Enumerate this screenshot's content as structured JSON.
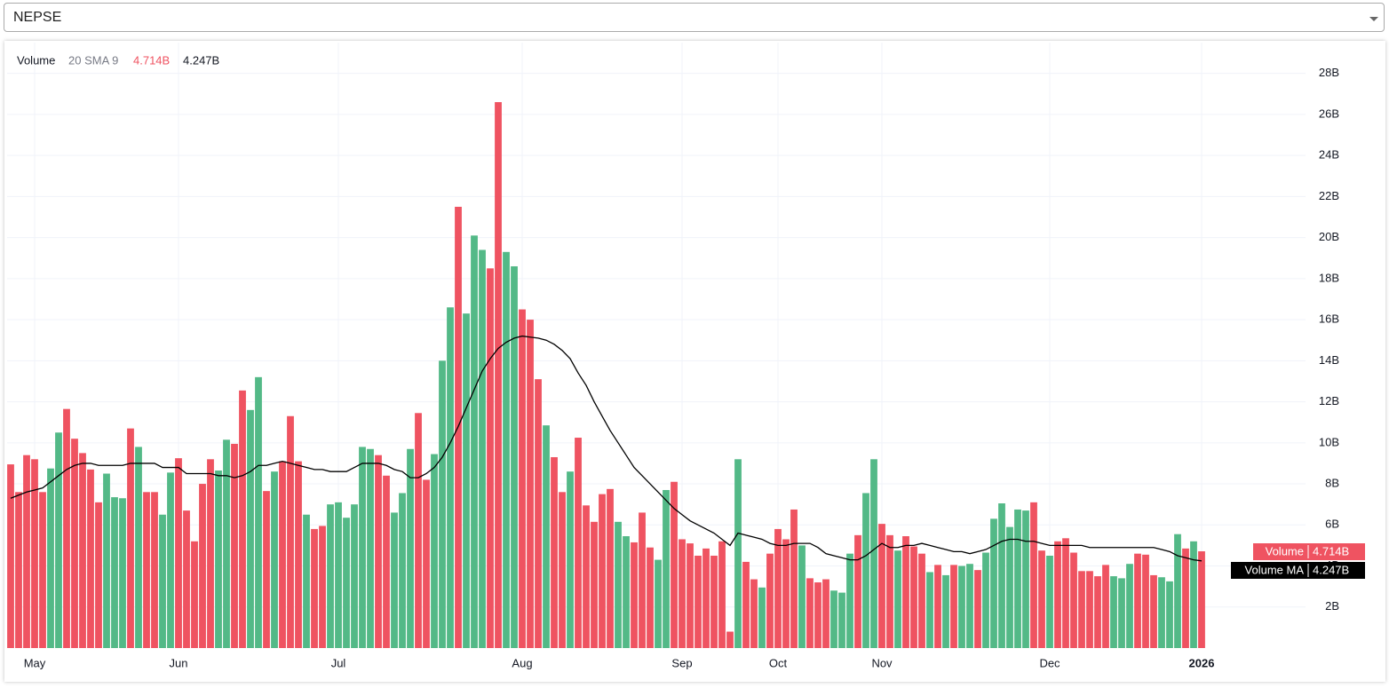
{
  "selector": {
    "value": "NEPSE"
  },
  "chart_data": {
    "type": "bar",
    "indicator_label": "Volume",
    "indicator_params": "20 SMA 9",
    "categories": [
      null,
      null,
      null,
      "May",
      null,
      null,
      null,
      null,
      null,
      null,
      null,
      null,
      null,
      null,
      null,
      null,
      null,
      null,
      null,
      null,
      null,
      "Jun",
      null,
      null,
      null,
      null,
      null,
      null,
      null,
      null,
      null,
      null,
      null,
      null,
      null,
      null,
      null,
      null,
      null,
      null,
      null,
      "Jul",
      null,
      null,
      null,
      null,
      null,
      null,
      null,
      null,
      null,
      null,
      null,
      null,
      null,
      null,
      null,
      null,
      null,
      null,
      null,
      null,
      null,
      null,
      "Aug",
      null,
      null,
      null,
      null,
      null,
      null,
      null,
      null,
      null,
      null,
      null,
      null,
      null,
      null,
      null,
      null,
      null,
      null,
      null,
      "Sep",
      null,
      null,
      null,
      null,
      null,
      null,
      null,
      null,
      null,
      null,
      null,
      "Oct",
      null,
      null,
      null,
      null,
      null,
      null,
      null,
      null,
      null,
      null,
      null,
      null,
      "Nov",
      null,
      null,
      null,
      null,
      null,
      null,
      null,
      null,
      null,
      null,
      null,
      null,
      null,
      null,
      null,
      null,
      null,
      null,
      null,
      null,
      "Dec",
      null,
      null,
      null,
      null,
      null,
      null,
      null,
      null,
      null,
      null,
      null,
      null,
      null,
      null,
      null,
      null,
      null,
      null,
      "2026"
    ],
    "ylim": [
      0,
      29.5
    ],
    "yticks": [
      {
        "value": 2,
        "label": "2B"
      },
      {
        "value": 4,
        "label": "4B"
      },
      {
        "value": 6,
        "label": "6B"
      },
      {
        "value": 8,
        "label": "8B"
      },
      {
        "value": 10,
        "label": "10B"
      },
      {
        "value": 12,
        "label": "12B"
      },
      {
        "value": 14,
        "label": "14B"
      },
      {
        "value": 16,
        "label": "16B"
      },
      {
        "value": 18,
        "label": "18B"
      },
      {
        "value": 20,
        "label": "20B"
      },
      {
        "value": 22,
        "label": "22B"
      },
      {
        "value": 24,
        "label": "24B"
      },
      {
        "value": 26,
        "label": "26B"
      },
      {
        "value": 28,
        "label": "28B"
      }
    ],
    "grid": true,
    "series": [
      {
        "name": "Volume",
        "color": "#ef5350",
        "last_value_label": "4.714B",
        "values": [
          8.95,
          7.6,
          9.4,
          9.2,
          7.6,
          8.75,
          10.5,
          11.65,
          10.2,
          9.5,
          8.7,
          7.1,
          8.5,
          7.35,
          7.3,
          10.7,
          9.8,
          7.6,
          7.6,
          6.5,
          8.55,
          9.25,
          6.7,
          5.2,
          8.0,
          9.2,
          8.65,
          10.15,
          9.95,
          12.55,
          11.6,
          13.2,
          7.65,
          8.6,
          9.1,
          11.3,
          9.1,
          6.5,
          5.8,
          5.95,
          7.0,
          7.1,
          6.35,
          7.0,
          9.8,
          9.7,
          9.4,
          8.4,
          6.6,
          7.55,
          9.7,
          11.45,
          8.2,
          9.45,
          14.0,
          16.6,
          21.5,
          16.3,
          20.1,
          19.4,
          18.5,
          26.6,
          19.3,
          18.6,
          16.5,
          16.0,
          13.1,
          10.85,
          9.3,
          7.6,
          8.6,
          10.25,
          6.95,
          6.15,
          7.5,
          7.75,
          6.15,
          5.45,
          5.15,
          6.6,
          4.9,
          4.3,
          7.7,
          8.1,
          5.3,
          5.1,
          4.5,
          4.85,
          4.5,
          5.2,
          0.8,
          9.2,
          4.2,
          3.35,
          2.95,
          4.6,
          5.8,
          5.3,
          6.75,
          5.0,
          3.4,
          3.2,
          3.35,
          2.8,
          2.7,
          4.6,
          5.5,
          7.55,
          9.2,
          6.05,
          5.5,
          4.75,
          5.45,
          4.95,
          4.6,
          3.7,
          4.05,
          3.55,
          4.05,
          4.0,
          4.1,
          3.8,
          4.65,
          6.3,
          7.05,
          5.9,
          6.75,
          6.7,
          7.1,
          4.75,
          4.5,
          5.2,
          5.35,
          4.65,
          3.75,
          3.75,
          3.5,
          4.05,
          3.5,
          3.4,
          4.1,
          4.6,
          4.55,
          3.55,
          3.45,
          3.25,
          5.55,
          4.85,
          5.2,
          4.714
        ],
        "colors": [
          "#ef5361",
          "#ef5361",
          "#ef5361",
          "#ef5361",
          "#ef5361",
          "#53b987",
          "#53b987",
          "#ef5361",
          "#ef5361",
          "#ef5361",
          "#ef5361",
          "#ef5361",
          "#53b987",
          "#53b987",
          "#53b987",
          "#ef5361",
          "#53b987",
          "#ef5361",
          "#ef5361",
          "#53b987",
          "#53b987",
          "#ef5361",
          "#ef5361",
          "#ef5361",
          "#ef5361",
          "#ef5361",
          "#53b987",
          "#53b987",
          "#ef5361",
          "#ef5361",
          "#53b987",
          "#53b987",
          "#ef5361",
          "#53b987",
          "#ef5361",
          "#ef5361",
          "#ef5361",
          "#53b987",
          "#ef5361",
          "#ef5361",
          "#53b987",
          "#53b987",
          "#53b987",
          "#53b987",
          "#53b987",
          "#53b987",
          "#ef5361",
          "#ef5361",
          "#53b987",
          "#53b987",
          "#53b987",
          "#ef5361",
          "#ef5361",
          "#53b987",
          "#53b987",
          "#53b987",
          "#ef5361",
          "#53b987",
          "#53b987",
          "#53b987",
          "#ef5361",
          "#ef5361",
          "#53b987",
          "#53b987",
          "#ef5361",
          "#ef5361",
          "#ef5361",
          "#53b987",
          "#ef5361",
          "#ef5361",
          "#53b987",
          "#ef5361",
          "#ef5361",
          "#ef5361",
          "#ef5361",
          "#ef5361",
          "#53b987",
          "#53b987",
          "#ef5361",
          "#ef5361",
          "#ef5361",
          "#53b987",
          "#53b987",
          "#ef5361",
          "#ef5361",
          "#ef5361",
          "#ef5361",
          "#ef5361",
          "#ef5361",
          "#ef5361",
          "#ef5361",
          "#53b987",
          "#ef5361",
          "#ef5361",
          "#53b987",
          "#ef5361",
          "#ef5361",
          "#ef5361",
          "#ef5361",
          "#53b987",
          "#ef5361",
          "#ef5361",
          "#ef5361",
          "#53b987",
          "#53b987",
          "#53b987",
          "#ef5361",
          "#53b987",
          "#53b987",
          "#ef5361",
          "#ef5361",
          "#53b987",
          "#ef5361",
          "#ef5361",
          "#ef5361",
          "#53b987",
          "#ef5361",
          "#53b987",
          "#ef5361",
          "#53b987",
          "#53b987",
          "#ef5361",
          "#53b987",
          "#53b987",
          "#53b987",
          "#53b987",
          "#53b987",
          "#53b987",
          "#ef5361",
          "#ef5361",
          "#53b987",
          "#ef5361",
          "#ef5361",
          "#ef5361",
          "#ef5361",
          "#ef5361",
          "#ef5361",
          "#ef5361",
          "#53b987",
          "#53b987",
          "#53b987",
          "#ef5361",
          "#ef5361",
          "#ef5361",
          "#53b987",
          "#53b987",
          "#53b987",
          "#ef5361",
          "#53b987",
          "#ef5361"
        ]
      },
      {
        "name": "Volume MA",
        "color": "#000000",
        "last_value_label": "4.247B",
        "values": [
          7.3,
          7.45,
          7.6,
          7.7,
          7.8,
          8.1,
          8.4,
          8.7,
          8.9,
          9.0,
          9.0,
          8.9,
          8.9,
          8.9,
          8.9,
          9.0,
          9.0,
          9.0,
          9.0,
          8.8,
          8.8,
          8.8,
          8.5,
          8.5,
          8.5,
          8.5,
          8.4,
          8.4,
          8.3,
          8.4,
          8.6,
          8.9,
          8.9,
          9.0,
          9.1,
          9.0,
          8.9,
          8.8,
          8.7,
          8.7,
          8.6,
          8.6,
          8.6,
          8.8,
          9.0,
          9.0,
          9.0,
          8.9,
          8.7,
          8.6,
          8.3,
          8.3,
          8.5,
          8.8,
          9.3,
          10.0,
          10.8,
          11.7,
          12.6,
          13.5,
          14.1,
          14.6,
          14.9,
          15.1,
          15.2,
          15.15,
          15.1,
          15.0,
          14.8,
          14.5,
          14.1,
          13.4,
          12.8,
          12.0,
          11.3,
          10.6,
          10.0,
          9.4,
          8.8,
          8.4,
          8.0,
          7.6,
          7.2,
          6.8,
          6.5,
          6.2,
          6.0,
          5.8,
          5.6,
          5.3,
          5.0,
          5.6,
          5.5,
          5.4,
          5.3,
          5.1,
          5.0,
          5.0,
          5.1,
          5.1,
          5.1,
          4.9,
          4.6,
          4.5,
          4.4,
          4.3,
          4.3,
          4.5,
          4.8,
          5.1,
          4.9,
          4.9,
          5.0,
          5.0,
          5.1,
          5.0,
          4.9,
          4.8,
          4.7,
          4.7,
          4.6,
          4.7,
          4.8,
          5.0,
          5.2,
          5.3,
          5.3,
          5.2,
          5.2,
          5.1,
          5.0,
          5.0,
          5.0,
          5.0,
          5.0,
          4.9,
          4.9,
          4.9,
          4.9,
          4.9,
          4.9,
          4.9,
          4.9,
          4.9,
          4.8,
          4.7,
          4.5,
          4.4,
          4.3,
          4.247
        ]
      }
    ]
  }
}
